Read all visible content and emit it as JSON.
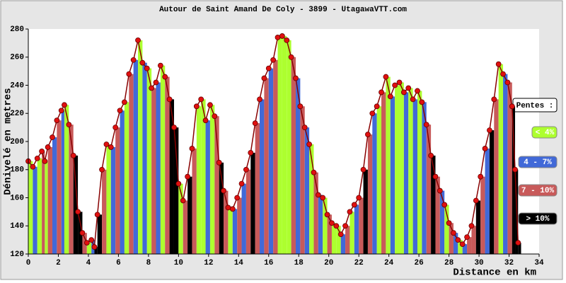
{
  "chart_data": {
    "type": "elevation-profile",
    "title": "Autour de Saint Amand De Coly - 3899 - UtagawaVTT.com",
    "x_label": "Distance en km",
    "y_label": "Dénivelé en metres",
    "xlim": [
      0,
      34
    ],
    "xticks": [
      0,
      2,
      4,
      6,
      8,
      10,
      12,
      14,
      16,
      18,
      20,
      22,
      24,
      26,
      28,
      30,
      32,
      34
    ],
    "ylim": [
      120,
      280
    ],
    "yticks": [
      120,
      140,
      160,
      180,
      200,
      220,
      240,
      260,
      280
    ],
    "legend_title": "Pentes :",
    "legend": [
      {
        "name": "< 4%",
        "color": "#adff2f"
      },
      {
        "name": "4 - 7%",
        "color": "#4169d8"
      },
      {
        "name": "7 - 10%",
        "color": "#c85a5a"
      },
      {
        "name": "> 10%",
        "color": "#000000"
      }
    ],
    "point_color": "#e01010",
    "x": [
      0,
      0.3,
      0.6,
      0.9,
      1.1,
      1.3,
      1.6,
      1.9,
      2.2,
      2.4,
      2.7,
      3.0,
      3.3,
      3.6,
      3.9,
      4.2,
      4.4,
      4.6,
      4.9,
      5.2,
      5.5,
      5.8,
      6.1,
      6.4,
      6.7,
      7.0,
      7.3,
      7.6,
      7.9,
      8.2,
      8.5,
      8.8,
      9.1,
      9.4,
      9.7,
      10.0,
      10.3,
      10.6,
      10.9,
      11.2,
      11.5,
      11.8,
      12.1,
      12.4,
      12.7,
      13.0,
      13.3,
      13.6,
      13.9,
      14.2,
      14.5,
      14.8,
      15.1,
      15.4,
      15.7,
      16.0,
      16.3,
      16.6,
      16.9,
      17.2,
      17.5,
      17.8,
      18.1,
      18.4,
      18.7,
      19.0,
      19.3,
      19.6,
      19.9,
      20.2,
      20.5,
      20.8,
      21.1,
      21.4,
      21.7,
      22.0,
      22.3,
      22.6,
      22.9,
      23.2,
      23.5,
      23.8,
      24.1,
      24.4,
      24.7,
      25.0,
      25.3,
      25.6,
      25.9,
      26.2,
      26.5,
      26.8,
      27.1,
      27.4,
      27.7,
      28.0,
      28.3,
      28.6,
      28.9,
      29.2,
      29.5,
      29.8,
      30.1,
      30.4,
      30.7,
      31.0,
      31.3,
      31.6,
      31.9,
      32.2,
      32.4,
      32.6
    ],
    "values": [
      186,
      182,
      188,
      193,
      186,
      196,
      203,
      215,
      222,
      226,
      212,
      190,
      150,
      135,
      128,
      130,
      125,
      148,
      180,
      198,
      196,
      210,
      222,
      228,
      248,
      258,
      272,
      256,
      252,
      238,
      242,
      254,
      246,
      230,
      210,
      170,
      158,
      175,
      195,
      225,
      230,
      215,
      226,
      218,
      185,
      165,
      153,
      152,
      160,
      170,
      180,
      192,
      213,
      230,
      245,
      252,
      258,
      274,
      275,
      272,
      260,
      245,
      225,
      210,
      198,
      178,
      162,
      160,
      148,
      142,
      140,
      134,
      140,
      150,
      155,
      160,
      180,
      205,
      220,
      225,
      235,
      246,
      232,
      240,
      242,
      235,
      238,
      230,
      236,
      228,
      212,
      190,
      175,
      165,
      155,
      142,
      135,
      130,
      127,
      132,
      140,
      158,
      175,
      195,
      208,
      230,
      255,
      248,
      242,
      225,
      180,
      128
    ],
    "colors": [
      "#adff2f",
      "#4169d8",
      "#adff2f",
      "#c85a5a",
      "#adff2f",
      "#c85a5a",
      "#4169d8",
      "#c85a5a",
      "#4169d8",
      "#adff2f",
      "#c85a5a",
      "#000000",
      "#000000",
      "#c85a5a",
      "#adff2f",
      "#4169d8",
      "#000000",
      "#000000",
      "#c85a5a",
      "#adff2f",
      "#4169d8",
      "#c85a5a",
      "#4169d8",
      "#adff2f",
      "#c85a5a",
      "#4169d8",
      "#adff2f",
      "#4169d8",
      "#adff2f",
      "#c85a5a",
      "#4169d8",
      "#adff2f",
      "#c85a5a",
      "#000000",
      "#000000",
      "#adff2f",
      "#c85a5a",
      "#000000",
      "#c85a5a",
      "#adff2f",
      "#adff2f",
      "#4169d8",
      "#adff2f",
      "#c85a5a",
      "#000000",
      "#c85a5a",
      "#adff2f",
      "#4169d8",
      "#c85a5a",
      "#4169d8",
      "#c85a5a",
      "#000000",
      "#c85a5a",
      "#4169d8",
      "#c85a5a",
      "#4169d8",
      "#c85a5a",
      "#adff2f",
      "#adff2f",
      "#adff2f",
      "#c85a5a",
      "#4169d8",
      "#c85a5a",
      "#4169d8",
      "#adff2f",
      "#c85a5a",
      "#4169d8",
      "#adff2f",
      "#c85a5a",
      "#adff2f",
      "#adff2f",
      "#4169d8",
      "#c85a5a",
      "#adff2f",
      "#4169d8",
      "#c85a5a",
      "#000000",
      "#c85a5a",
      "#4169d8",
      "#adff2f",
      "#c85a5a",
      "#adff2f",
      "#4169d8",
      "#adff2f",
      "#adff2f",
      "#4169d8",
      "#adff2f",
      "#4169d8",
      "#adff2f",
      "#4169d8",
      "#c85a5a",
      "#000000",
      "#c85a5a",
      "#4169d8",
      "#adff2f",
      "#c85a5a",
      "#4169d8",
      "#adff2f",
      "#4169d8",
      "#c85a5a",
      "#c85a5a",
      "#000000",
      "#c85a5a",
      "#4169d8",
      "#000000",
      "#c85a5a",
      "#adff2f",
      "#4169d8",
      "#c85a5a",
      "#000000",
      "#000000",
      "#000000"
    ]
  }
}
